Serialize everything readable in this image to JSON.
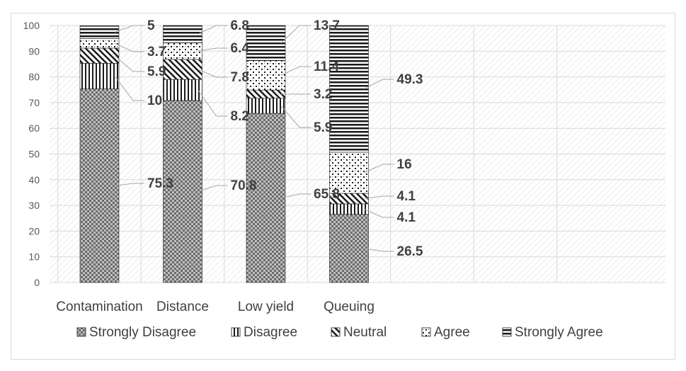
{
  "chart_data": {
    "type": "bar",
    "stacked": true,
    "categories": [
      "Contamination",
      "Distance",
      "Low yield",
      "Queuing"
    ],
    "series": [
      {
        "name": "Strongly Disagree",
        "values": [
          75.3,
          70.8,
          65.8,
          26.5
        ],
        "pattern": "checker"
      },
      {
        "name": "Disagree",
        "values": [
          10,
          8.2,
          5.9,
          4.1
        ],
        "pattern": "vertical"
      },
      {
        "name": "Neutral",
        "values": [
          5.9,
          7.8,
          3.2,
          4.1
        ],
        "pattern": "diagonal"
      },
      {
        "name": "Agree",
        "values": [
          3.7,
          6.4,
          11.4,
          16
        ],
        "pattern": "dots"
      },
      {
        "name": "Strongly Agree",
        "values": [
          5,
          6.8,
          13.7,
          49.3
        ],
        "pattern": "horizontal"
      }
    ],
    "yticks": [
      0,
      10,
      20,
      30,
      40,
      50,
      60,
      70,
      80,
      90,
      100
    ],
    "ylim": [
      0,
      100
    ],
    "legend_position": "bottom",
    "grid": true
  }
}
